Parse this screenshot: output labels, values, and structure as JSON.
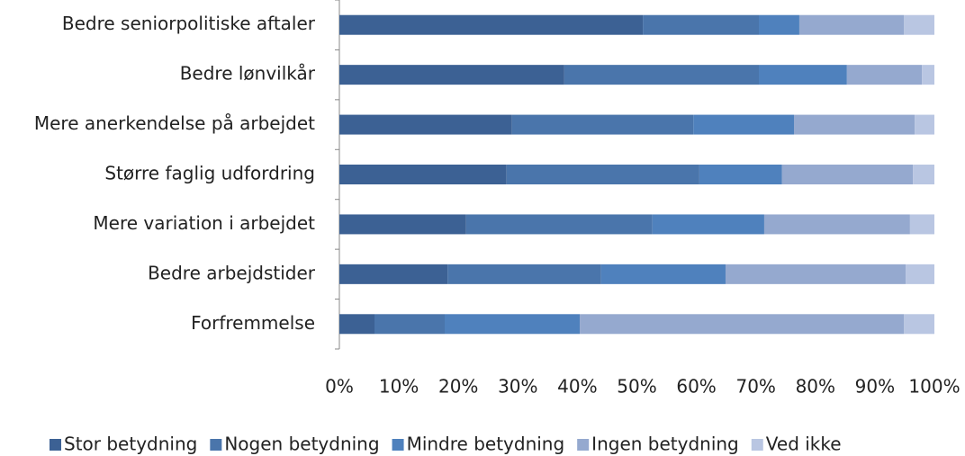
{
  "chart_data": {
    "type": "bar",
    "orientation": "horizontal",
    "categories": [
      "Bedre seniorpolitiske aftaler",
      "Bedre lønvilkår",
      "Mere anerkendelse på arbejdet",
      "Større faglig udfordring",
      "Mere variation i arbejdet",
      "Bedre arbejdstider",
      "Forfremmelse"
    ],
    "series": [
      {
        "name": "Stor betydning",
        "color": "#3c6194",
        "values": [
          51.0,
          37.8,
          29.0,
          28.1,
          21.3,
          18.2,
          5.9
        ]
      },
      {
        "name": "Nogen betydning",
        "color": "#4a75ab",
        "values": [
          19.5,
          32.7,
          30.5,
          32.4,
          31.3,
          25.8,
          11.8
        ]
      },
      {
        "name": "Mindre betydning",
        "color": "#4f81bd",
        "values": [
          6.8,
          14.8,
          16.9,
          13.9,
          18.8,
          20.9,
          22.7
        ]
      },
      {
        "name": "Ingen betydning",
        "color": "#95a9cf",
        "values": [
          17.6,
          12.6,
          20.3,
          22.0,
          24.5,
          30.3,
          54.5
        ]
      },
      {
        "name": "Ved ikke",
        "color": "#b9c6e2",
        "values": [
          5.1,
          2.1,
          3.3,
          3.6,
          4.1,
          4.8,
          5.1
        ]
      }
    ],
    "xlim": [
      0,
      100
    ],
    "xticks": [
      {
        "value": 0,
        "label": "0%"
      },
      {
        "value": 10,
        "label": "10%"
      },
      {
        "value": 20,
        "label": "20%"
      },
      {
        "value": 30,
        "label": "30%"
      },
      {
        "value": 40,
        "label": "40%"
      },
      {
        "value": 50,
        "label": "50%"
      },
      {
        "value": 60,
        "label": "60%"
      },
      {
        "value": 70,
        "label": "70%"
      },
      {
        "value": 80,
        "label": "80%"
      },
      {
        "value": 90,
        "label": "90%"
      },
      {
        "value": 100,
        "label": "100%"
      }
    ],
    "stacked": true,
    "grid": false,
    "legend": "bottom"
  }
}
